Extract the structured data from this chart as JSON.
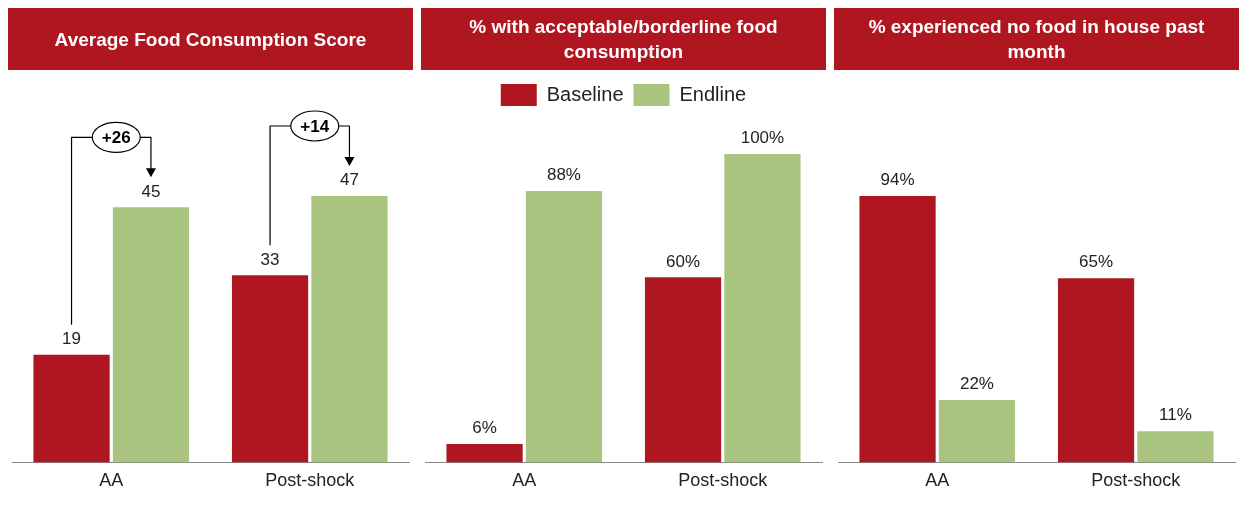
{
  "chart_data": [
    {
      "type": "bar",
      "title": "Average Food Consumption Score",
      "categories": [
        "AA",
        "Post-shock"
      ],
      "series": [
        {
          "color": "#b01620",
          "values": [
            19,
            33
          ]
        },
        {
          "color": "#a9c47f",
          "values": [
            45,
            47
          ]
        }
      ],
      "data_labels": true,
      "grid": false,
      "legend": false,
      "annotations": [
        "+26",
        "+14"
      ]
    },
    {
      "type": "bar",
      "title": "% with acceptable/borderline food consumption",
      "categories": [
        "AA",
        "Post-shock"
      ],
      "series": [
        {
          "name": "Baseline",
          "color": "#b01620",
          "values": [
            6,
            60
          ],
          "value_labels": [
            "6%",
            "60%"
          ]
        },
        {
          "name": "Endline",
          "color": "#a9c47f",
          "values": [
            88,
            100
          ],
          "value_labels": [
            "88%",
            "100%"
          ]
        }
      ],
      "grid": false,
      "legend": "top"
    },
    {
      "type": "bar",
      "title": "% experienced no food in house past month",
      "categories": [
        "AA",
        "Post-shock"
      ],
      "series": [
        {
          "color": "#b01620",
          "values": [
            94,
            65
          ],
          "value_labels": [
            "94%",
            "65%"
          ]
        },
        {
          "color": "#a9c47f",
          "values": [
            22,
            11
          ],
          "value_labels": [
            "22%",
            "11%"
          ]
        }
      ],
      "grid": false,
      "legend": false
    }
  ]
}
